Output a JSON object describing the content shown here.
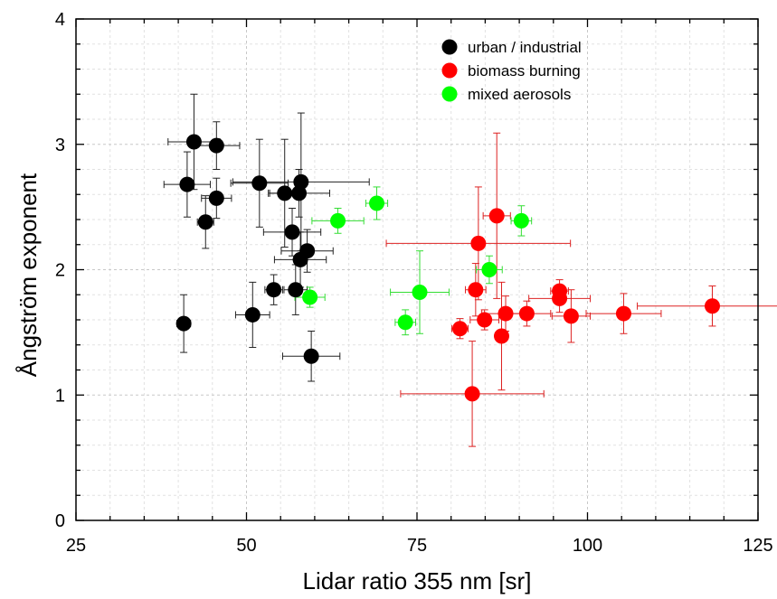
{
  "chart_data": {
    "type": "scatter",
    "title": "",
    "xlabel": "Lidar ratio 355 nm [sr]",
    "ylabel": "Ångström exponent",
    "xlim": [
      25,
      125
    ],
    "ylim": [
      0,
      4
    ],
    "x_ticks": [
      25,
      50,
      75,
      100,
      125
    ],
    "y_ticks": [
      0,
      1,
      2,
      3,
      4
    ],
    "x_minor_step": 5,
    "y_minor_step": 0.2,
    "grid": "dashed, major and minor",
    "legend_position": "top-right",
    "series": [
      {
        "name": "urban / industrial",
        "color": "#000000",
        "points": [
          {
            "x": 42.3,
            "y": 3.02,
            "xerr": 3.8,
            "yerr": 0.38
          },
          {
            "x": 45.6,
            "y": 2.99,
            "xerr": 3.4,
            "yerr": 0.19
          },
          {
            "x": 41.3,
            "y": 2.68,
            "xerr": 3.4,
            "yerr": 0.26
          },
          {
            "x": 45.6,
            "y": 2.57,
            "xerr": 2.2,
            "yerr": 0.16
          },
          {
            "x": 44.0,
            "y": 2.38,
            "xerr": 1.2,
            "yerr": 0.21
          },
          {
            "x": 51.9,
            "y": 2.69,
            "xerr": 4.2,
            "yerr": 0.35
          },
          {
            "x": 55.6,
            "y": 2.61,
            "xerr": 2.2,
            "yerr": 0.43
          },
          {
            "x": 57.7,
            "y": 2.61,
            "xerr": 4.5,
            "yerr": 0.19
          },
          {
            "x": 58.0,
            "y": 2.7,
            "xerr": 10.0,
            "yerr": 0.55
          },
          {
            "x": 56.7,
            "y": 2.3,
            "xerr": 4.2,
            "yerr": 0.19
          },
          {
            "x": 58.9,
            "y": 2.15,
            "xerr": 3.8,
            "yerr": 0.17
          },
          {
            "x": 57.9,
            "y": 2.08,
            "xerr": 3.8,
            "yerr": 0.22
          },
          {
            "x": 54.0,
            "y": 1.84,
            "xerr": 1.3,
            "yerr": 0.12
          },
          {
            "x": 57.2,
            "y": 1.84,
            "xerr": 1.7,
            "yerr": 0.2
          },
          {
            "x": 40.8,
            "y": 1.57,
            "xerr": 1.0,
            "yerr": 0.23
          },
          {
            "x": 50.9,
            "y": 1.64,
            "xerr": 2.5,
            "yerr": 0.26
          },
          {
            "x": 59.5,
            "y": 1.31,
            "xerr": 4.2,
            "yerr": 0.2
          }
        ]
      },
      {
        "name": "biomass burning",
        "color": "#ff0000",
        "points": [
          {
            "x": 86.7,
            "y": 2.43,
            "xerr": 2.0,
            "yerr": 0.66
          },
          {
            "x": 84.0,
            "y": 2.21,
            "xerr": 13.5,
            "yerr": 0.45
          },
          {
            "x": 83.6,
            "y": 1.84,
            "xerr": 1.5,
            "yerr": 0.21
          },
          {
            "x": 95.9,
            "y": 1.83,
            "xerr": 1.3,
            "yerr": 0.09
          },
          {
            "x": 95.9,
            "y": 1.77,
            "xerr": 4.5,
            "yerr": 0.11
          },
          {
            "x": 118.3,
            "y": 1.71,
            "xerr": 11.0,
            "yerr": 0.16
          },
          {
            "x": 105.3,
            "y": 1.65,
            "xerr": 5.5,
            "yerr": 0.16
          },
          {
            "x": 91.1,
            "y": 1.65,
            "xerr": 3.5,
            "yerr": 0.1
          },
          {
            "x": 88.0,
            "y": 1.65,
            "xerr": 3.5,
            "yerr": 0.14
          },
          {
            "x": 97.6,
            "y": 1.63,
            "xerr": 2.8,
            "yerr": 0.21
          },
          {
            "x": 84.9,
            "y": 1.6,
            "xerr": 2.1,
            "yerr": 0.08
          },
          {
            "x": 81.3,
            "y": 1.53,
            "xerr": 1.2,
            "yerr": 0.08
          },
          {
            "x": 87.4,
            "y": 1.47,
            "xerr": 0.6,
            "yerr": 0.43
          },
          {
            "x": 83.1,
            "y": 1.01,
            "xerr": 10.5,
            "yerr": 0.42
          }
        ]
      },
      {
        "name": "mixed aerosols",
        "color": "#00ff00",
        "points": [
          {
            "x": 69.1,
            "y": 2.53,
            "xerr": 1.6,
            "yerr": 0.13
          },
          {
            "x": 63.4,
            "y": 2.39,
            "xerr": 3.8,
            "yerr": 0.1
          },
          {
            "x": 90.3,
            "y": 2.39,
            "xerr": 1.5,
            "yerr": 0.12
          },
          {
            "x": 85.6,
            "y": 2.0,
            "xerr": 1.9,
            "yerr": 0.11
          },
          {
            "x": 75.4,
            "y": 1.82,
            "xerr": 4.3,
            "yerr": 0.33
          },
          {
            "x": 59.3,
            "y": 1.78,
            "xerr": 2.2,
            "yerr": 0.08
          },
          {
            "x": 73.3,
            "y": 1.58,
            "xerr": 1.5,
            "yerr": 0.1
          }
        ]
      }
    ]
  }
}
